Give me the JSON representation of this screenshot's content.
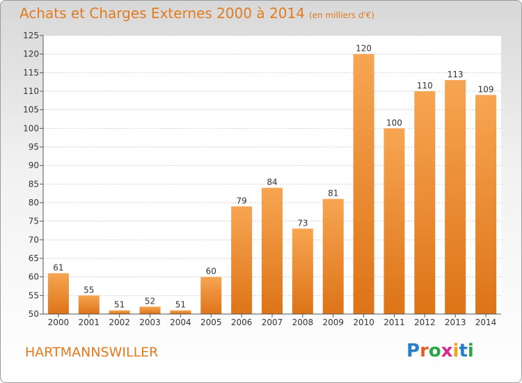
{
  "title": "Achats et Charges Externes 2000 à 2014",
  "subtitle": "(en milliers d'€)",
  "commune": "HARTMANNSWILLER",
  "logo": {
    "text": "Proxiti",
    "letters": [
      "P",
      "r",
      "o",
      "x",
      "i",
      "t",
      "i"
    ],
    "colors": [
      "#2b7fc9",
      "#e95b2b",
      "#27a844",
      "#d62b8c",
      "#f0a416",
      "#2b7fc9",
      "#27a844"
    ]
  },
  "colors": {
    "bar_light": "#f7a552",
    "bar_dark": "#dd7418",
    "text": "#333333",
    "accent": "#e07b20"
  },
  "chart_data": {
    "type": "bar",
    "categories": [
      "2000",
      "2001",
      "2002",
      "2003",
      "2004",
      "2005",
      "2006",
      "2007",
      "2008",
      "2009",
      "2010",
      "2011",
      "2012",
      "2013",
      "2014"
    ],
    "values": [
      61,
      55,
      51,
      52,
      51,
      60,
      79,
      84,
      73,
      81,
      120,
      100,
      110,
      113,
      109
    ],
    "ylim": [
      50,
      125
    ],
    "yticks": [
      50,
      55,
      60,
      65,
      70,
      75,
      80,
      85,
      90,
      95,
      100,
      105,
      110,
      115,
      120,
      125
    ],
    "grid": true,
    "data_labels": true
  }
}
